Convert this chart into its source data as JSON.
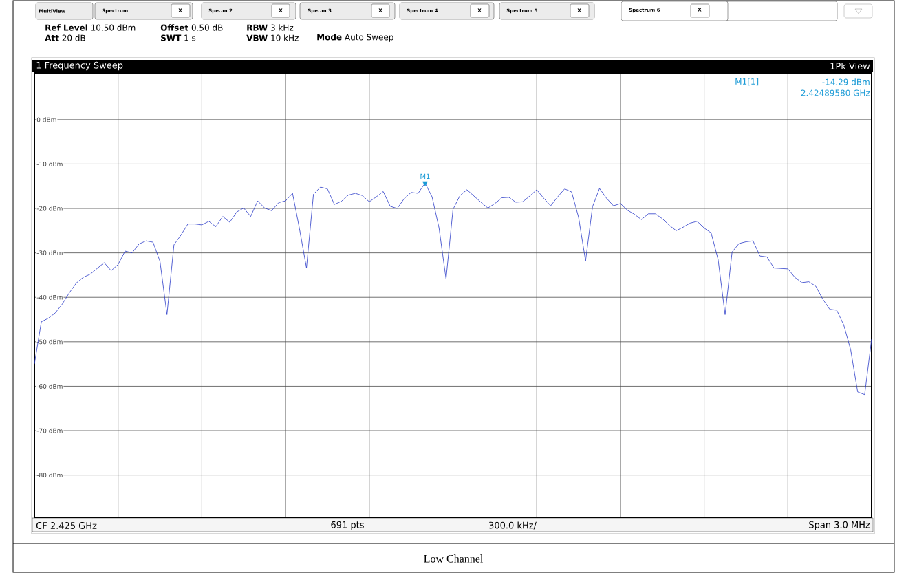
{
  "chart_data": {
    "type": "line",
    "title": "1 Frequency Sweep",
    "categories": [
      null,
      null,
      null,
      null,
      null,
      null,
      null,
      null,
      null,
      null,
      null,
      null,
      null,
      null,
      null,
      null,
      null,
      null,
      null,
      null,
      null,
      null,
      null,
      null,
      null,
      null,
      null,
      null,
      null,
      null,
      null,
      null,
      null,
      null,
      null,
      null,
      null,
      null,
      null,
      null,
      null,
      null,
      null,
      null,
      null,
      null,
      null,
      null,
      null,
      null,
      null,
      null,
      null,
      null,
      null,
      null,
      null,
      null,
      null,
      null,
      null,
      null,
      null,
      null,
      null,
      null,
      null,
      null,
      null,
      null,
      null,
      null,
      null,
      null,
      null,
      null,
      null,
      null,
      null,
      null,
      null,
      null,
      null,
      null,
      null,
      null,
      null,
      null,
      null,
      null,
      null,
      null,
      null,
      null,
      null,
      null,
      null,
      null,
      null,
      null,
      null,
      null,
      null,
      null,
      null,
      null,
      null,
      null,
      null,
      null,
      null,
      null,
      null,
      null,
      null,
      null,
      null,
      null,
      null,
      null,
      null
    ],
    "series": [
      {
        "color": "#2b3bc8",
        "values": [
          -55,
          -45.5,
          -44.7,
          -43.5,
          -41.5,
          -39,
          -36.8,
          -35.5,
          -34.8,
          -33.5,
          -32.2,
          -34,
          -32.6,
          -29.6,
          -30,
          -28,
          -27.3,
          -27.6,
          -31.9,
          -43.9,
          -28.2,
          -26,
          -23.5,
          -23.5,
          -23.7,
          -22.9,
          -24.1,
          -21.8,
          -23.1,
          -20.8,
          -19.9,
          -21.8,
          -18.3,
          -19.9,
          -20.5,
          -18.7,
          -18.3,
          -16.6,
          -24.6,
          -33.4,
          -16.8,
          -15.2,
          -15.6,
          -19.1,
          -18.4,
          -17,
          -16.6,
          -17.1,
          -18.5,
          -17.4,
          -16.2,
          -19.5,
          -20,
          -17.8,
          -16.4,
          -16.6,
          -14.29,
          -17.4,
          -24.4,
          -35.9,
          -20.2,
          -17.1,
          -15.8,
          -17.2,
          -18.6,
          -19.9,
          -18.9,
          -17.6,
          -17.5,
          -18.6,
          -18.5,
          -17.2,
          -15.8,
          -17.7,
          -19.4,
          -17.4,
          -15.6,
          -16.3,
          -22,
          -31.8,
          -19.6,
          -15.5,
          -17.7,
          -19.4,
          -18.9,
          -20.4,
          -21.3,
          -22.5,
          -21.2,
          -21.2,
          -22.3,
          -23.8,
          -25,
          -24.2,
          -23.3,
          -22.9,
          -24.4,
          -25.5,
          -31.5,
          -43.9,
          -29.8,
          -27.9,
          -27.5,
          -27.3,
          -30.7,
          -30.9,
          -33.4,
          -33.5,
          -33.6,
          -35.5,
          -36.7,
          -36.5,
          -37.5,
          -40.4,
          -42.7,
          -42.9,
          -46.2,
          -51.8,
          -61.3,
          -61.9,
          -49.4
        ]
      },
      {
        "type": "scatter",
        "name": "M1",
        "color": "#1a9ad6",
        "marker": "triangle",
        "values": [
          null,
          null,
          null,
          null,
          null,
          null,
          null,
          null,
          null,
          null,
          null,
          null,
          null,
          null,
          null,
          null,
          null,
          null,
          null,
          null,
          null,
          null,
          null,
          null,
          null,
          null,
          null,
          null,
          null,
          null,
          null,
          null,
          null,
          null,
          null,
          null,
          null,
          null,
          null,
          null,
          null,
          null,
          null,
          null,
          null,
          null,
          null,
          null,
          null,
          null,
          null,
          null,
          null,
          null,
          null,
          null,
          -14.29,
          null,
          null,
          null,
          null,
          null,
          null,
          null,
          null,
          null,
          null,
          null,
          null,
          null,
          null,
          null,
          null,
          null,
          null,
          null,
          null,
          null,
          null,
          null,
          null,
          null,
          null,
          null,
          null,
          null,
          null,
          null,
          null,
          null,
          null,
          null,
          null,
          null,
          null,
          null,
          null,
          null,
          null,
          null,
          null,
          null,
          null,
          null,
          null,
          null,
          null,
          null,
          null,
          null,
          null,
          null,
          null,
          null,
          null,
          null,
          null,
          null,
          null,
          null,
          null
        ]
      }
    ],
    "ylim": [
      -89.5,
      10.5
    ],
    "yticks": [
      {
        "value": 0,
        "label": "0 dBm"
      },
      {
        "value": -10,
        "label": "-10 dBm"
      },
      {
        "value": -20,
        "label": "-20 dBm"
      },
      {
        "value": -30,
        "label": "-30 dBm"
      },
      {
        "value": -40,
        "label": "-40 dBm"
      },
      {
        "value": -50,
        "label": "-50 dBm"
      },
      {
        "value": -60,
        "label": "-60 dBm"
      },
      {
        "value": -70,
        "label": "-70 dBm"
      },
      {
        "value": -80,
        "label": "-80 dBm"
      }
    ],
    "tick_labels": "y",
    "grid": true,
    "line_style": "solid",
    "annotations": [
      "MultiView",
      "Spectrum",
      "X",
      "Spe..m 2",
      "X",
      "Spe..m 3",
      "X",
      "Spectrum 4",
      "X",
      "Spectrum 5",
      "X",
      "Spectrum 6",
      "X",
      "**Ref Level** 10.50 dBm",
      "**Offset** 0.50 dB",
      "**RBW** 3 kHz",
      "**Att** 20 dB",
      "**SWT** 1 s",
      "**VBW** 10 kHz",
      "**Mode** Auto Sweep",
      "1Pk View",
      "M1[1]",
      "-14.29 dBm",
      "2.42489580 GHz",
      "CF 2.425 GHz",
      "691 pts",
      "300.0 kHz/",
      "Span 3.0 MHz",
      "Low Channel"
    ]
  }
}
